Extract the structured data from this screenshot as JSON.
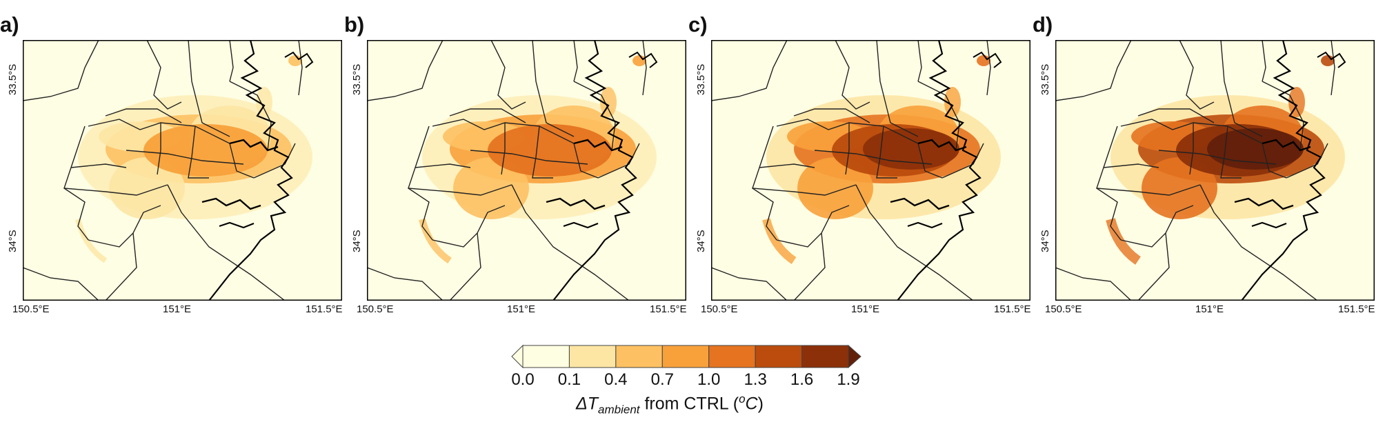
{
  "figure": {
    "panels": [
      {
        "label": "a)",
        "intensity": 1
      },
      {
        "label": "b)",
        "intensity": 2
      },
      {
        "label": "c)",
        "intensity": 3
      },
      {
        "label": "d)",
        "intensity": 4
      }
    ],
    "axes": {
      "lat_labels": [
        "33.5°S",
        "34°S"
      ],
      "lon_labels": [
        "150.5°E",
        "151°E",
        "151.5°E"
      ]
    },
    "colorbar": {
      "ticks": [
        "0.0",
        "0.1",
        "0.4",
        "0.7",
        "1.0",
        "1.3",
        "1.6",
        "1.9"
      ],
      "colors": [
        "#fefee2",
        "#fde6a4",
        "#fdc163",
        "#f8a13b",
        "#e57320",
        "#bb4c0d",
        "#8c3009",
        "#62200b"
      ],
      "title_delta": "ΔT",
      "title_sub": "ambient",
      "title_mid": " from CTRL (",
      "title_sup": "o",
      "title_unit": "C",
      "title_end": ")"
    },
    "background_color": "#fefee4"
  }
}
